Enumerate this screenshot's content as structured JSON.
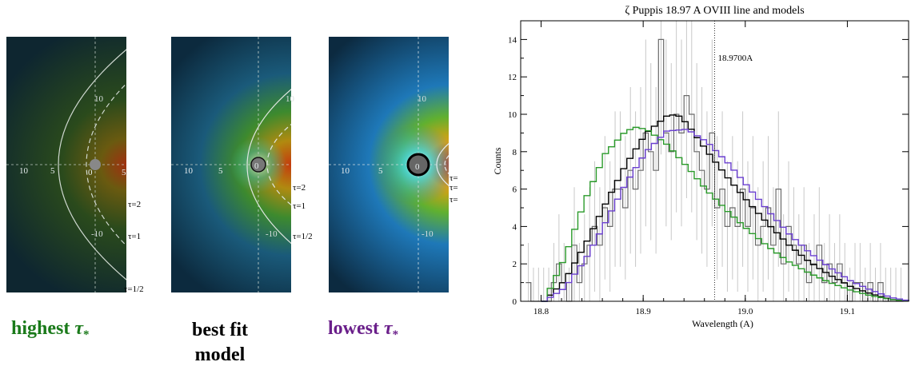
{
  "captions": {
    "high_word": "highest",
    "best_line1": "best fit",
    "best_line2": "model",
    "low_word": "lowest",
    "tau_symbol": "τ",
    "tau_sub": "*",
    "high_color": "#1a7a1a",
    "best_color": "#000000",
    "low_color": "#6a1f8a"
  },
  "panels": [
    {
      "id": "high",
      "axis_ticks": {
        "x": [
          "10",
          "5",
          "0",
          "5"
        ],
        "y_up": "10",
        "y_down": "-10"
      },
      "tau_labels": [
        "τ=2",
        "τ=1",
        "τ=1/2"
      ]
    },
    {
      "id": "best",
      "axis_ticks": {
        "x": [
          "10",
          "5",
          "0"
        ],
        "y_up": "10",
        "y_down": "-10"
      },
      "tau_labels": [
        "τ=2",
        "τ=1",
        "τ=1/2"
      ]
    },
    {
      "id": "low",
      "axis_ticks": {
        "x": [
          "10",
          "5",
          "0"
        ],
        "y_up": "10",
        "y_down": "-10"
      },
      "tau_labels": [
        "τ=",
        "τ=",
        "τ="
      ]
    }
  ],
  "chart_data": {
    "type": "line",
    "title": "ζ Puppis 18.97 A OVIII line and models",
    "xlabel": "Wavelength (A)",
    "ylabel": "Counts",
    "xlim": [
      18.78,
      19.16
    ],
    "ylim": [
      0,
      15
    ],
    "x_ticks": [
      18.8,
      18.9,
      19.0,
      19.1
    ],
    "x_tick_labels": [
      "18.8",
      "18.9",
      "19.0",
      "19.1"
    ],
    "y_ticks": [
      0,
      2,
      4,
      6,
      8,
      10,
      12,
      14
    ],
    "y_tick_labels": [
      "0",
      "2",
      "4",
      "6",
      "8",
      "10",
      "12",
      "14"
    ],
    "reference_line": {
      "x": 18.97,
      "label": "18.9700A"
    },
    "data_histogram": {
      "x": [
        18.785,
        18.79,
        18.795,
        18.8,
        18.805,
        18.81,
        18.815,
        18.82,
        18.825,
        18.83,
        18.835,
        18.84,
        18.845,
        18.85,
        18.855,
        18.86,
        18.865,
        18.87,
        18.875,
        18.88,
        18.885,
        18.89,
        18.895,
        18.9,
        18.905,
        18.91,
        18.915,
        18.92,
        18.925,
        18.93,
        18.935,
        18.94,
        18.945,
        18.95,
        18.955,
        18.96,
        18.965,
        18.97,
        18.975,
        18.98,
        18.985,
        18.99,
        18.995,
        19.0,
        19.005,
        19.01,
        19.015,
        19.02,
        19.025,
        19.03,
        19.035,
        19.04,
        19.045,
        19.05,
        19.055,
        19.06,
        19.065,
        19.07,
        19.075,
        19.08,
        19.085,
        19.09,
        19.095,
        19.1,
        19.105,
        19.11,
        19.115,
        19.12,
        19.125,
        19.13,
        19.135,
        19.14,
        19.145,
        19.15
      ],
      "counts": [
        1,
        0,
        0,
        0,
        0,
        1,
        2,
        1,
        0,
        3,
        1,
        2,
        3,
        4,
        3,
        5,
        4,
        6,
        6,
        5,
        7,
        6,
        7,
        9,
        8,
        7,
        14,
        9,
        8,
        10,
        9,
        11,
        10,
        8,
        7,
        6,
        9,
        5,
        6,
        4,
        5,
        4,
        6,
        4,
        5,
        3,
        4,
        5,
        3,
        6,
        2,
        4,
        3,
        2,
        3,
        1,
        2,
        3,
        1,
        2,
        1,
        2,
        1,
        0,
        1,
        1,
        0,
        1,
        0,
        1,
        0,
        0,
        0,
        0
      ]
    },
    "series": [
      {
        "name": "",
        "color": "#000000",
        "x": [
          18.8,
          18.82,
          18.84,
          18.86,
          18.88,
          18.9,
          18.92,
          18.93,
          18.94,
          18.96,
          18.98,
          19.0,
          19.02,
          19.04,
          19.06,
          19.08,
          19.1,
          19.12,
          19.14,
          19.16
        ],
        "y": [
          0,
          1.1,
          3.0,
          5.2,
          7.3,
          9.0,
          9.9,
          10.0,
          9.5,
          8.0,
          6.6,
          5.3,
          4.1,
          3.0,
          2.1,
          1.4,
          0.8,
          0.4,
          0.1,
          0
        ]
      },
      {
        "name": "",
        "color": "#2a9a2a",
        "x": [
          18.8,
          18.82,
          18.84,
          18.86,
          18.88,
          18.89,
          18.9,
          18.92,
          18.94,
          18.96,
          18.98,
          19.0,
          19.02,
          19.04,
          19.06,
          19.08,
          19.1,
          19.12,
          19.14,
          19.16
        ],
        "y": [
          0,
          2.3,
          5.4,
          7.9,
          9.1,
          9.3,
          9.2,
          8.4,
          7.2,
          5.9,
          4.8,
          3.8,
          2.9,
          2.1,
          1.5,
          1.0,
          0.6,
          0.3,
          0.1,
          0
        ]
      },
      {
        "name": "",
        "color": "#6a3fd0",
        "x": [
          18.8,
          18.82,
          18.84,
          18.86,
          18.88,
          18.9,
          18.92,
          18.94,
          18.96,
          18.98,
          19.0,
          19.02,
          19.04,
          19.06,
          19.08,
          19.1,
          19.12,
          19.14,
          19.16
        ],
        "y": [
          0,
          0.7,
          2.2,
          4.2,
          6.3,
          8.0,
          9.1,
          9.2,
          8.5,
          7.4,
          6.1,
          4.8,
          3.6,
          2.6,
          1.8,
          1.1,
          0.6,
          0.2,
          0
        ]
      }
    ]
  }
}
